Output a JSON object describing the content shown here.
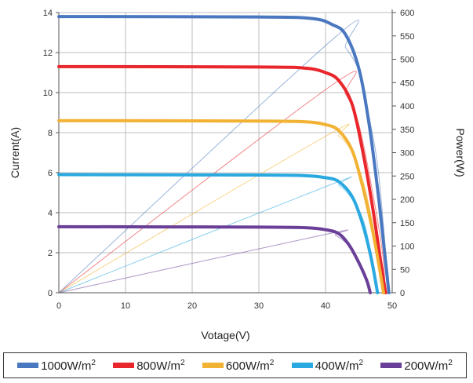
{
  "chart_data": {
    "type": "line",
    "xlabel": "Votage(V)",
    "ylabel": "Current(A)",
    "y2label": "Power(W)",
    "xlim": [
      0,
      50
    ],
    "ylim": [
      0,
      14
    ],
    "y2lim": [
      0,
      600
    ],
    "x_ticks": [
      "0",
      "10",
      "20",
      "30",
      "40",
      "50"
    ],
    "y_ticks": [
      "0",
      "2",
      "4",
      "6",
      "8",
      "10",
      "12",
      "14"
    ],
    "y2_ticks": [
      "0",
      "50",
      "100",
      "150",
      "200",
      "250",
      "300",
      "350",
      "400",
      "450",
      "500",
      "550",
      "600"
    ],
    "grid": true,
    "legend_position": "bottom",
    "series": [
      {
        "name": "1000W/m",
        "color": "#4a78c0",
        "isc": 13.8,
        "iv": [
          [
            0,
            13.8
          ],
          [
            30,
            13.78
          ],
          [
            38,
            13.7
          ],
          [
            41,
            13.4
          ],
          [
            43,
            12.9
          ],
          [
            45,
            11.2
          ],
          [
            46.5,
            8.5
          ],
          [
            47.8,
            5.2
          ],
          [
            48.8,
            2.2
          ],
          [
            49.5,
            0
          ]
        ],
        "pv": [
          [
            0,
            0
          ],
          [
            41.5,
            548
          ],
          [
            43,
            525
          ],
          [
            45,
            475
          ],
          [
            46.5,
            380
          ],
          [
            48,
            250
          ],
          [
            49.5,
            0
          ]
        ]
      },
      {
        "name": "800W/m",
        "color": "#e8262b",
        "isc": 11.3,
        "iv": [
          [
            0,
            11.3
          ],
          [
            30,
            11.28
          ],
          [
            37,
            11.22
          ],
          [
            40,
            11.0
          ],
          [
            42,
            10.6
          ],
          [
            44,
            9.4
          ],
          [
            45.5,
            7.2
          ],
          [
            47,
            4.4
          ],
          [
            48.3,
            1.5
          ],
          [
            49,
            0
          ]
        ],
        "pv": [
          [
            0,
            0
          ],
          [
            41,
            445
          ],
          [
            43,
            425
          ],
          [
            45,
            360
          ],
          [
            47,
            220
          ],
          [
            48.5,
            90
          ],
          [
            49,
            0
          ]
        ]
      },
      {
        "name": "600W/m",
        "color": "#f2b233",
        "isc": 8.6,
        "iv": [
          [
            0,
            8.6
          ],
          [
            30,
            8.58
          ],
          [
            37,
            8.54
          ],
          [
            40,
            8.4
          ],
          [
            42,
            8.1
          ],
          [
            44,
            7.1
          ],
          [
            45.5,
            5.4
          ],
          [
            47,
            3.2
          ],
          [
            48,
            1.4
          ],
          [
            48.7,
            0
          ]
        ],
        "pv": [
          [
            0,
            0
          ],
          [
            40,
            335
          ],
          [
            42,
            335
          ],
          [
            44,
            300
          ],
          [
            46,
            220
          ],
          [
            47.5,
            110
          ],
          [
            48.7,
            0
          ]
        ]
      },
      {
        "name": "400W/m",
        "color": "#2aa9e0",
        "isc": 5.9,
        "iv": [
          [
            0,
            5.9
          ],
          [
            30,
            5.88
          ],
          [
            37,
            5.85
          ],
          [
            40,
            5.75
          ],
          [
            42,
            5.55
          ],
          [
            44,
            4.8
          ],
          [
            45.5,
            3.5
          ],
          [
            46.8,
            1.8
          ],
          [
            47.8,
            0
          ]
        ],
        "pv": [
          [
            0,
            0
          ],
          [
            40.5,
            230
          ],
          [
            42,
            230
          ],
          [
            44,
            200
          ],
          [
            46,
            140
          ],
          [
            47.8,
            0
          ]
        ]
      },
      {
        "name": "200W/m",
        "color": "#6a3f98",
        "isc": 3.3,
        "iv": [
          [
            0,
            3.3
          ],
          [
            30,
            3.28
          ],
          [
            37,
            3.25
          ],
          [
            40,
            3.15
          ],
          [
            42,
            2.95
          ],
          [
            43.5,
            2.4
          ],
          [
            45,
            1.5
          ],
          [
            46.2,
            0.6
          ],
          [
            46.7,
            0
          ]
        ],
        "pv": [
          [
            0,
            0
          ],
          [
            40,
            125
          ],
          [
            41.5,
            123
          ],
          [
            43.5,
            100
          ],
          [
            45.5,
            55
          ],
          [
            46.7,
            0
          ]
        ]
      }
    ]
  },
  "legend": {
    "items": [
      {
        "label": "1000W/m",
        "sup": "2",
        "color": "#4a78c0"
      },
      {
        "label": "800W/m",
        "sup": "2",
        "color": "#e8262b"
      },
      {
        "label": "600W/m",
        "sup": "2",
        "color": "#f2b233"
      },
      {
        "label": "400W/m",
        "sup": "2",
        "color": "#2aa9e0"
      },
      {
        "label": "200W/m",
        "sup": "2",
        "color": "#6a3f98"
      }
    ]
  }
}
